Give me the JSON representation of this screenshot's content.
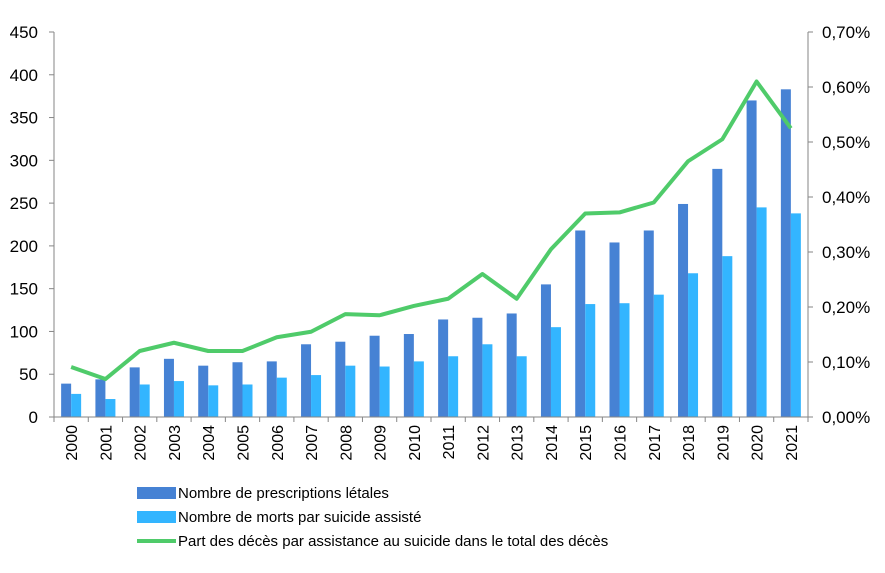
{
  "chart_data": {
    "type": "bar",
    "title": "",
    "categories": [
      "2000",
      "2001",
      "2002",
      "2003",
      "2004",
      "2005",
      "2006",
      "2007",
      "2008",
      "2009",
      "2010",
      "2011",
      "2012",
      "2013",
      "2014",
      "2015",
      "2016",
      "2017",
      "2018",
      "2019",
      "2020",
      "2021"
    ],
    "series": [
      {
        "name": "Nombre de prescriptions létales",
        "type": "bar",
        "axis": "left",
        "color": "#4682D4",
        "values": [
          39,
          44,
          58,
          68,
          60,
          64,
          65,
          85,
          88,
          95,
          97,
          114,
          116,
          121,
          155,
          218,
          204,
          218,
          249,
          290,
          370,
          383
        ]
      },
      {
        "name": "Nombre de morts par suicide assisté",
        "type": "bar",
        "axis": "left",
        "color": "#33B5FF",
        "values": [
          27,
          21,
          38,
          42,
          37,
          38,
          46,
          49,
          60,
          59,
          65,
          71,
          85,
          71,
          105,
          132,
          133,
          143,
          168,
          188,
          245,
          238
        ]
      },
      {
        "name": "Part des décès par assistance au suicide dans le total des décès",
        "type": "line",
        "axis": "right",
        "color": "#4FCB6A",
        "values": [
          0.091,
          0.069,
          0.12,
          0.135,
          0.12,
          0.12,
          0.145,
          0.155,
          0.187,
          0.185,
          0.202,
          0.215,
          0.26,
          0.215,
          0.305,
          0.37,
          0.372,
          0.39,
          0.465,
          0.505,
          0.61,
          0.525
        ]
      }
    ],
    "y_left": {
      "lim": [
        0,
        450
      ],
      "ticks": [
        "0",
        "50",
        "100",
        "150",
        "200",
        "250",
        "300",
        "350",
        "400",
        "450"
      ]
    },
    "y_right": {
      "lim": [
        0,
        0.7
      ],
      "ticks": [
        "0,00%",
        "0,10%",
        "0,20%",
        "0,30%",
        "0,40%",
        "0,50%",
        "0,60%",
        "0,70%"
      ]
    },
    "xlabel": "",
    "ylabel": "",
    "grid": false,
    "legend_position": "bottom"
  }
}
